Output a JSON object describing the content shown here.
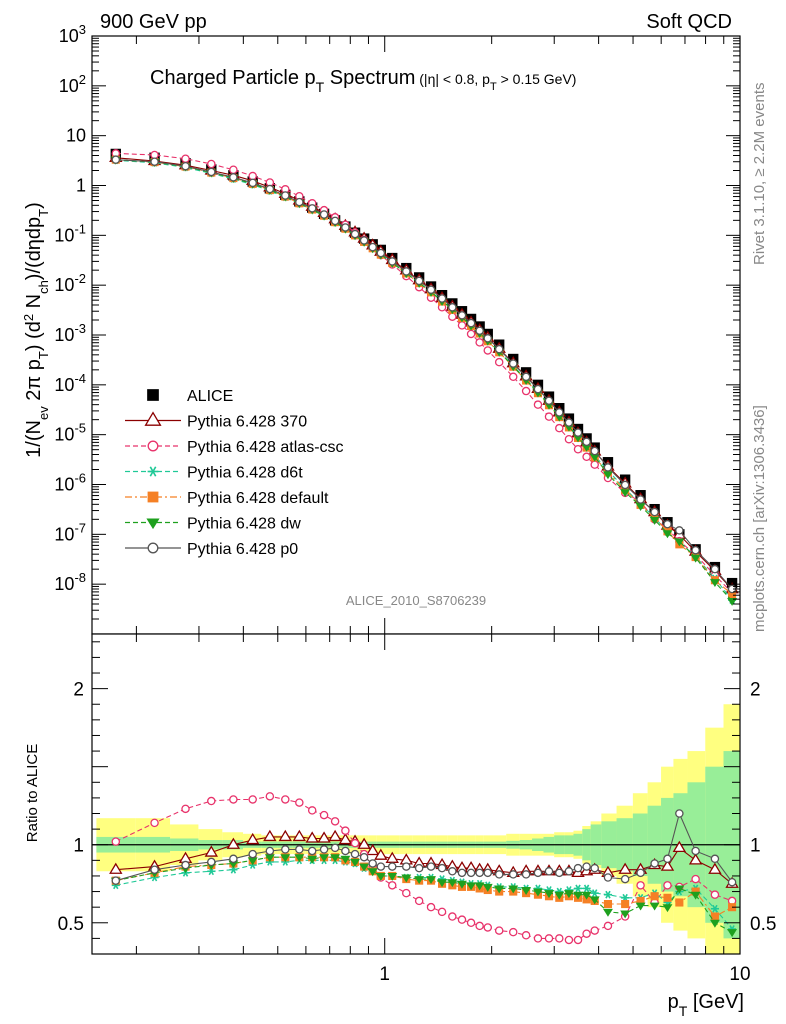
{
  "header": {
    "left": "900 GeV pp",
    "right": "Soft QCD",
    "side_right": "Rivet 3.1.10, ≥ 2.2M events",
    "side_bottom": "mcplots.cern.ch [arXiv:1306.3436]",
    "analysis_id": "ALICE_2010_S8706239"
  },
  "chart_data": [
    {
      "type": "line",
      "title": "Charged Particle p_T Spectrum (|η| < 0.8, p_T > 0.15 GeV)",
      "ylabel": "1/(N_ev 2π p_T) (d² N_ch)/(dηdp_T)",
      "xlabel": "p_T [GeV]",
      "xscale": "log",
      "yscale": "log",
      "xlim": [
        0.15,
        10
      ],
      "ylim": [
        1e-09,
        1000
      ],
      "legend_position": "bottom-left",
      "x": [
        0.175,
        0.225,
        0.275,
        0.325,
        0.375,
        0.425,
        0.475,
        0.525,
        0.575,
        0.625,
        0.675,
        0.725,
        0.775,
        0.825,
        0.875,
        0.925,
        0.975,
        1.05,
        1.15,
        1.25,
        1.35,
        1.45,
        1.55,
        1.65,
        1.75,
        1.85,
        1.95,
        2.1,
        2.3,
        2.5,
        2.7,
        2.9,
        3.1,
        3.3,
        3.5,
        3.7,
        3.9,
        4.25,
        4.75,
        5.25,
        5.75,
        6.25,
        6.75,
        7.5,
        8.5,
        9.5
      ],
      "series": [
        {
          "name": "ALICE",
          "color": "#000000",
          "marker": "square",
          "values": [
            4.3,
            3.6,
            2.8,
            2.1,
            1.6,
            1.2,
            0.88,
            0.65,
            0.48,
            0.36,
            0.27,
            0.2,
            0.15,
            0.113,
            0.086,
            0.066,
            0.051,
            0.035,
            0.022,
            0.0143,
            0.0094,
            0.0063,
            0.0043,
            0.003,
            0.0021,
            0.00148,
            0.00105,
            0.00064,
            0.00033,
            0.000178,
            0.0001,
            5.8e-05,
            3.4e-05,
            2.1e-05,
            1.3e-05,
            8.4e-06,
            5.5e-06,
            2.8e-06,
            1.25e-06,
            6.1e-07,
            3.2e-07,
            1.75e-07,
            1e-07,
            5e-08,
            2.2e-08,
            1.05e-08
          ]
        },
        {
          "name": "Pythia 6.428 370",
          "color": "#8b0000",
          "marker": "open-triangle",
          "values": [
            3.6,
            3.1,
            2.55,
            2.0,
            1.6,
            1.24,
            0.92,
            0.68,
            0.5,
            0.375,
            0.282,
            0.21,
            0.155,
            0.115,
            0.086,
            0.063,
            0.047,
            0.032,
            0.0198,
            0.0126,
            0.0083,
            0.0055,
            0.0037,
            0.00255,
            0.00178,
            0.00125,
            0.00088,
            0.00053,
            0.000272,
            0.000148,
            8.3e-05,
            4.8e-05,
            2.8e-05,
            1.75e-05,
            1.07e-05,
            7e-06,
            4.6e-06,
            2.3e-06,
            1.05e-06,
            5.1e-07,
            2.8e-07,
            1.5e-07,
            9.8e-08,
            4.5e-08,
            1.85e-08,
            7.9e-09
          ]
        },
        {
          "name": "Pythia 6.428 atlas-csc",
          "color": "#e8336b",
          "marker": "open-circle",
          "values": [
            4.4,
            4.1,
            3.45,
            2.7,
            2.07,
            1.55,
            1.15,
            0.84,
            0.61,
            0.44,
            0.32,
            0.23,
            0.163,
            0.114,
            0.081,
            0.057,
            0.04,
            0.026,
            0.0152,
            0.0091,
            0.0056,
            0.0036,
            0.00233,
            0.00156,
            0.00105,
            0.00071,
            0.00049,
            0.000285,
            0.000145,
            7.5e-05,
            4e-05,
            2.3e-05,
            1.35e-05,
            8.1e-06,
            5.1e-06,
            3.6e-06,
            2.5e-06,
            1.35e-06,
            6.8e-07,
            4.5e-07,
            2e-07,
            1.3e-07,
            7.3e-08,
            3.9e-08,
            1.5e-08,
            6.7e-09
          ]
        },
        {
          "name": "Pythia 6.428 d6t",
          "color": "#20c997",
          "marker": "star",
          "values": [
            3.2,
            2.85,
            2.3,
            1.75,
            1.35,
            1.04,
            0.78,
            0.58,
            0.43,
            0.324,
            0.243,
            0.181,
            0.134,
            0.099,
            0.073,
            0.055,
            0.041,
            0.028,
            0.0174,
            0.0112,
            0.0074,
            0.0049,
            0.0033,
            0.00227,
            0.00158,
            0.00111,
            0.00078,
            0.00047,
            0.000241,
            0.000129,
            7.2e-05,
            4.1e-05,
            2.4e-05,
            1.5e-05,
            9.3e-06,
            6e-06,
            3.8e-06,
            1.9e-06,
            8.3e-07,
            4e-07,
            2.2e-07,
            1.1e-07,
            7e-08,
            3.6e-08,
            1.3e-08,
            4.8e-09
          ]
        },
        {
          "name": "Pythia 6.428 default",
          "color": "#f58025",
          "marker": "square",
          "values": [
            3.3,
            2.95,
            2.4,
            1.82,
            1.41,
            1.08,
            0.81,
            0.6,
            0.44,
            0.33,
            0.248,
            0.184,
            0.136,
            0.1,
            0.074,
            0.055,
            0.041,
            0.028,
            0.0172,
            0.011,
            0.0072,
            0.0047,
            0.0032,
            0.0022,
            0.00152,
            0.00107,
            0.00075,
            0.00045,
            0.000231,
            0.000122,
            6.8e-05,
            3.9e-05,
            2.25e-05,
            1.4e-05,
            8.6e-06,
            5.5e-06,
            3.5e-06,
            1.75e-06,
            7.8e-07,
            3.9e-07,
            2.15e-07,
            1.15e-07,
            6.3e-08,
            3.5e-08,
            1.2e-08,
            6.3e-09
          ]
        },
        {
          "name": "Pythia 6.428 dw",
          "color": "#1ea01e",
          "marker": "filled-triangle-down",
          "values": [
            3.3,
            2.95,
            2.4,
            1.82,
            1.41,
            1.08,
            0.81,
            0.6,
            0.44,
            0.33,
            0.248,
            0.184,
            0.136,
            0.1,
            0.074,
            0.055,
            0.041,
            0.028,
            0.0174,
            0.0111,
            0.0073,
            0.0048,
            0.0033,
            0.00225,
            0.00155,
            0.00109,
            0.00077,
            0.00046,
            0.000235,
            0.000125,
            7e-05,
            4e-05,
            2.3e-05,
            1.45e-05,
            8.8e-06,
            5.7e-06,
            3.6e-06,
            1.6e-06,
            7e-07,
            3.7e-07,
            1.95e-07,
            1.05e-07,
            7.2e-08,
            3.4e-08,
            1.1e-08,
            4.6e-09
          ]
        },
        {
          "name": "Pythia 6.428 p0",
          "color": "#555555",
          "marker": "open-circle",
          "values": [
            3.3,
            3.0,
            2.44,
            1.87,
            1.46,
            1.13,
            0.85,
            0.63,
            0.465,
            0.348,
            0.262,
            0.195,
            0.144,
            0.106,
            0.079,
            0.058,
            0.044,
            0.03,
            0.0189,
            0.0122,
            0.0081,
            0.0054,
            0.0036,
            0.00248,
            0.00173,
            0.00122,
            0.00086,
            0.00052,
            0.000267,
            0.000145,
            8.2e-05,
            4.8e-05,
            2.8e-05,
            1.75e-05,
            1.1e-05,
            7.2e-06,
            4.7e-06,
            2.2e-06,
            9.8e-07,
            5e-07,
            2.8e-07,
            1.6e-07,
            1.2e-07,
            4.8e-08,
            2e-08,
            8e-09
          ]
        }
      ]
    },
    {
      "type": "line",
      "ylabel": "Ratio to ALICE",
      "xlabel": "p_T [GeV]",
      "xscale": "log",
      "xlim": [
        0.15,
        10
      ],
      "ylim": [
        0.3,
        2.35
      ],
      "reference_line": 1,
      "x": [
        0.175,
        0.225,
        0.275,
        0.325,
        0.375,
        0.425,
        0.475,
        0.525,
        0.575,
        0.625,
        0.675,
        0.725,
        0.775,
        0.825,
        0.875,
        0.925,
        0.975,
        1.05,
        1.15,
        1.25,
        1.35,
        1.45,
        1.55,
        1.65,
        1.75,
        1.85,
        1.95,
        2.1,
        2.3,
        2.5,
        2.7,
        2.9,
        3.1,
        3.3,
        3.5,
        3.7,
        3.9,
        4.25,
        4.75,
        5.25,
        5.75,
        6.25,
        6.75,
        7.5,
        8.5,
        9.5
      ],
      "bands": [
        {
          "color": "#ffff80",
          "half_width": [
            0.17,
            0.17,
            0.13,
            0.1,
            0.08,
            0.07,
            0.06,
            0.06,
            0.06,
            0.06,
            0.06,
            0.06,
            0.06,
            0.06,
            0.06,
            0.06,
            0.06,
            0.06,
            0.06,
            0.06,
            0.06,
            0.06,
            0.06,
            0.06,
            0.06,
            0.06,
            0.06,
            0.06,
            0.07,
            0.07,
            0.07,
            0.07,
            0.08,
            0.08,
            0.09,
            0.12,
            0.15,
            0.2,
            0.25,
            0.33,
            0.4,
            0.5,
            0.55,
            0.6,
            0.75,
            0.9
          ]
        },
        {
          "color": "#98ee98",
          "half_width": [
            0.05,
            0.05,
            0.04,
            0.03,
            0.03,
            0.02,
            0.02,
            0.02,
            0.02,
            0.02,
            0.02,
            0.02,
            0.02,
            0.02,
            0.02,
            0.02,
            0.02,
            0.02,
            0.02,
            0.02,
            0.02,
            0.02,
            0.02,
            0.02,
            0.02,
            0.02,
            0.02,
            0.02,
            0.025,
            0.03,
            0.04,
            0.05,
            0.06,
            0.06,
            0.07,
            0.1,
            0.13,
            0.15,
            0.17,
            0.2,
            0.25,
            0.3,
            0.33,
            0.4,
            0.5,
            0.6
          ]
        }
      ],
      "series": [
        {
          "name": "Pythia 6.428 370",
          "values": [
            0.84,
            0.86,
            0.91,
            0.95,
            1.0,
            1.03,
            1.05,
            1.05,
            1.05,
            1.04,
            1.04,
            1.05,
            1.03,
            1.02,
            1.0,
            0.96,
            0.93,
            0.91,
            0.9,
            0.88,
            0.88,
            0.87,
            0.86,
            0.85,
            0.85,
            0.84,
            0.84,
            0.83,
            0.82,
            0.83,
            0.83,
            0.83,
            0.83,
            0.83,
            0.82,
            0.83,
            0.84,
            0.82,
            0.84,
            0.84,
            0.87,
            0.86,
            0.98,
            0.9,
            0.84,
            0.75
          ]
        },
        {
          "name": "Pythia 6.428 atlas-csc",
          "values": [
            1.02,
            1.14,
            1.23,
            1.28,
            1.29,
            1.29,
            1.31,
            1.29,
            1.27,
            1.22,
            1.19,
            1.15,
            1.09,
            1.01,
            0.94,
            0.86,
            0.79,
            0.74,
            0.69,
            0.64,
            0.6,
            0.57,
            0.54,
            0.52,
            0.5,
            0.48,
            0.47,
            0.45,
            0.44,
            0.42,
            0.4,
            0.4,
            0.4,
            0.39,
            0.39,
            0.43,
            0.45,
            0.48,
            0.54,
            0.74,
            0.63,
            0.74,
            0.73,
            0.78,
            0.68,
            0.64
          ]
        },
        {
          "name": "Pythia 6.428 d6t",
          "values": [
            0.74,
            0.79,
            0.82,
            0.83,
            0.84,
            0.87,
            0.89,
            0.89,
            0.9,
            0.9,
            0.9,
            0.9,
            0.89,
            0.88,
            0.85,
            0.83,
            0.8,
            0.8,
            0.79,
            0.79,
            0.79,
            0.78,
            0.77,
            0.76,
            0.75,
            0.75,
            0.74,
            0.73,
            0.73,
            0.72,
            0.72,
            0.71,
            0.7,
            0.71,
            0.72,
            0.72,
            0.69,
            0.68,
            0.66,
            0.66,
            0.69,
            0.63,
            0.7,
            0.72,
            0.59,
            0.46
          ]
        },
        {
          "name": "Pythia 6.428 default",
          "values": [
            0.77,
            0.82,
            0.86,
            0.87,
            0.88,
            0.9,
            0.92,
            0.92,
            0.92,
            0.92,
            0.92,
            0.92,
            0.9,
            0.89,
            0.86,
            0.83,
            0.8,
            0.8,
            0.78,
            0.77,
            0.77,
            0.75,
            0.74,
            0.73,
            0.73,
            0.72,
            0.71,
            0.7,
            0.7,
            0.69,
            0.68,
            0.67,
            0.66,
            0.67,
            0.66,
            0.65,
            0.64,
            0.62,
            0.62,
            0.64,
            0.67,
            0.66,
            0.63,
            0.7,
            0.54,
            0.6
          ]
        },
        {
          "name": "Pythia 6.428 dw",
          "values": [
            0.77,
            0.82,
            0.85,
            0.87,
            0.88,
            0.9,
            0.92,
            0.92,
            0.92,
            0.91,
            0.92,
            0.92,
            0.91,
            0.89,
            0.86,
            0.83,
            0.8,
            0.8,
            0.79,
            0.78,
            0.78,
            0.76,
            0.76,
            0.75,
            0.74,
            0.74,
            0.73,
            0.72,
            0.72,
            0.71,
            0.7,
            0.69,
            0.68,
            0.69,
            0.68,
            0.68,
            0.65,
            0.57,
            0.56,
            0.61,
            0.61,
            0.6,
            0.72,
            0.68,
            0.5,
            0.44
          ]
        },
        {
          "name": "Pythia 6.428 p0",
          "values": [
            0.77,
            0.84,
            0.87,
            0.89,
            0.91,
            0.94,
            0.96,
            0.97,
            0.97,
            0.96,
            0.97,
            0.98,
            0.96,
            0.94,
            0.92,
            0.88,
            0.86,
            0.86,
            0.86,
            0.85,
            0.86,
            0.85,
            0.83,
            0.82,
            0.82,
            0.82,
            0.82,
            0.81,
            0.81,
            0.81,
            0.82,
            0.83,
            0.82,
            0.83,
            0.85,
            0.86,
            0.85,
            0.79,
            0.78,
            0.82,
            0.88,
            0.91,
            1.2,
            0.96,
            0.91,
            0.76
          ]
        }
      ]
    }
  ]
}
